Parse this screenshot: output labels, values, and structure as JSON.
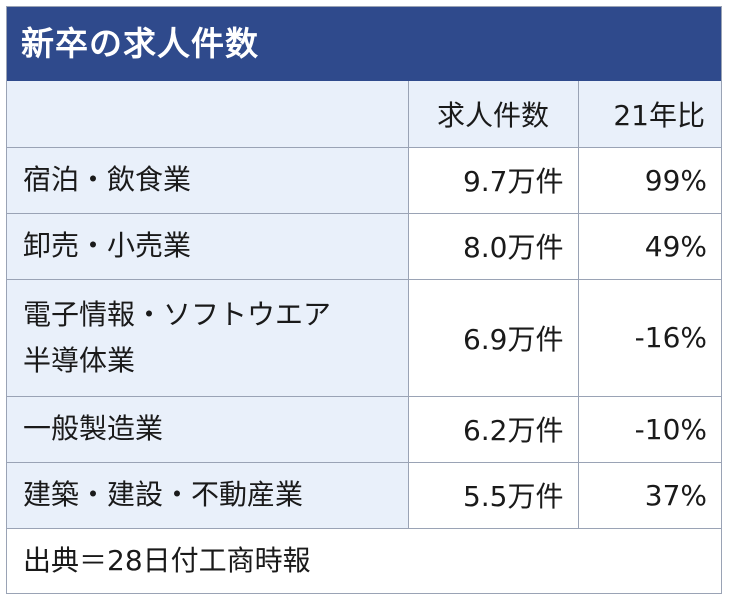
{
  "title": "新卒の求人件数",
  "columns": {
    "category": "",
    "count": "求人件数",
    "ratio": "21年比"
  },
  "rows": [
    {
      "category": "宿泊・飲食業",
      "count": "9.7万件",
      "ratio": "99%"
    },
    {
      "category": "卸売・小売業",
      "count": "8.0万件",
      "ratio": "49%"
    },
    {
      "category": "電子情報・ソフトウエア半導体業",
      "category_line1": "電子情報・ソフトウエア",
      "category_line2": "半導体業",
      "count": "6.9万件",
      "ratio": "-16%"
    },
    {
      "category": "一般製造業",
      "count": "6.2万件",
      "ratio": "-10%"
    },
    {
      "category": "建築・建設・不動産業",
      "count": "5.5万件",
      "ratio": "37%"
    }
  ],
  "source": "出典＝28日付工商時報",
  "colors": {
    "header_bg": "#2f4a8c",
    "category_bg": "#e9f0fa",
    "border": "#9aa3b5"
  }
}
